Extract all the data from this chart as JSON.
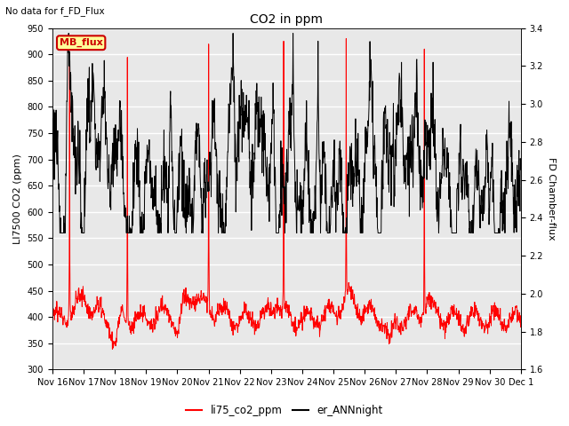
{
  "title": "CO2 in ppm",
  "subtitle": "No data for f_FD_Flux",
  "ylabel_left": "LI7500 CO2 (ppm)",
  "ylabel_right": "FD Chamber-flux",
  "ylim_left": [
    300,
    950
  ],
  "ylim_right": [
    1.6,
    3.4
  ],
  "yticks_left": [
    300,
    350,
    400,
    450,
    500,
    550,
    600,
    650,
    700,
    750,
    800,
    850,
    900,
    950
  ],
  "yticks_right": [
    1.6,
    1.8,
    2.0,
    2.2,
    2.4,
    2.6,
    2.8,
    3.0,
    3.2,
    3.4
  ],
  "xtick_labels": [
    "Nov 16",
    "Nov 17",
    "Nov 18",
    "Nov 19",
    "Nov 20",
    "Nov 21",
    "Nov 22",
    "Nov 23",
    "Nov 24",
    "Nov 25",
    "Nov 26",
    "Nov 27",
    "Nov 28",
    "Nov 29",
    "Nov 30",
    "Dec 1"
  ],
  "n_points": 1500,
  "legend_entries": [
    "li75_co2_ppm",
    "er_ANNnight"
  ],
  "legend_colors": [
    "red",
    "black"
  ],
  "line_color_red": "#ff0000",
  "line_color_black": "#000000",
  "background_color": "#e8e8e8",
  "grid_color": "#ffffff",
  "box_color": "#ffff99",
  "box_edge_color": "#cc0000",
  "box_text": "MB_flux",
  "box_text_color": "#cc0000",
  "figsize": [
    6.4,
    4.8
  ],
  "dpi": 100
}
